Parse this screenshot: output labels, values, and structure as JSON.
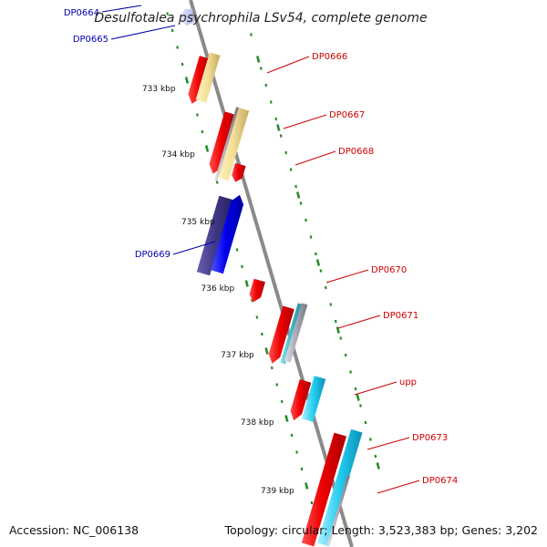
{
  "title": "Desulfotalea psychrophila LSv54, complete genome",
  "footer": {
    "accession": "Accession: NC_006138",
    "summary": "Topology: circular; Length: 3,523,383 bp; Genes: 3,202"
  },
  "colors": {
    "backbone": "#8a8a8a",
    "ticks": "#2e8b2e",
    "forward_label": "#cc0000",
    "reverse_label": "#0000aa"
  },
  "scale_labels": [
    "733 kbp",
    "734 kbp",
    "735 kbp",
    "736 kbp",
    "737 kbp",
    "738 kbp",
    "739 kbp"
  ],
  "genes": [
    {
      "label": "DP0664",
      "strand": "reverse"
    },
    {
      "label": "DP0665",
      "strand": "reverse"
    },
    {
      "label": "DP0666",
      "strand": "forward"
    },
    {
      "label": "DP0667",
      "strand": "forward"
    },
    {
      "label": "DP0668",
      "strand": "forward"
    },
    {
      "label": "DP0669",
      "strand": "reverse"
    },
    {
      "label": "DP0670",
      "strand": "forward"
    },
    {
      "label": "DP0671",
      "strand": "forward"
    },
    {
      "label": "upp",
      "strand": "forward"
    },
    {
      "label": "DP0673",
      "strand": "forward"
    },
    {
      "label": "DP0674",
      "strand": "forward"
    }
  ]
}
